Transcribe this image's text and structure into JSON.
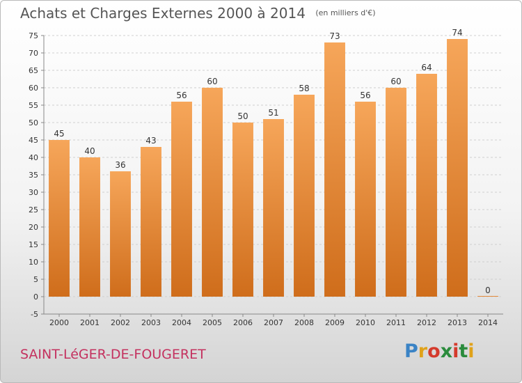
{
  "header": {
    "title": "Achats et Charges Externes 2000 à 2014",
    "unit": "(en milliers d'€)"
  },
  "footer": {
    "commune": "SAINT-LéGER-DE-FOUGERET",
    "brand_letters": [
      "P",
      "r",
      "o",
      "x",
      "i",
      "t",
      "i"
    ],
    "brand_colors": [
      "#3a83c5",
      "#e0a21a",
      "#d43a2c",
      "#2a8b3c",
      "#d43a2c",
      "#2a8b3c",
      "#e0a21a"
    ]
  },
  "colors": {
    "bar_top": "#f6a65a",
    "bar_bottom": "#cf6d1b",
    "grid": "#cfcfcf",
    "axis_text": "#333333"
  },
  "chart_data": {
    "type": "bar",
    "title": "Achats et Charges Externes 2000 à 2014",
    "subtitle": "(en milliers d'€)",
    "categories": [
      "2000",
      "2001",
      "2002",
      "2003",
      "2004",
      "2005",
      "2006",
      "2007",
      "2008",
      "2009",
      "2010",
      "2011",
      "2012",
      "2013",
      "2014"
    ],
    "values": [
      45,
      40,
      36,
      43,
      56,
      60,
      50,
      51,
      58,
      73,
      56,
      60,
      64,
      74,
      0
    ],
    "ylim": [
      -5,
      75
    ],
    "yticks": [
      -5,
      0,
      5,
      10,
      15,
      20,
      25,
      30,
      35,
      40,
      45,
      50,
      55,
      60,
      65,
      70,
      75
    ],
    "grid": "horizontal dashed",
    "data_labels": true
  }
}
